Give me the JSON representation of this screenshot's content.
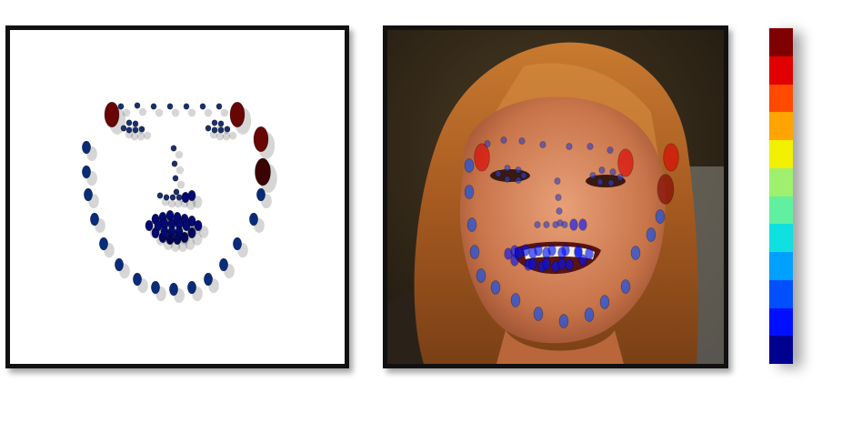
{
  "colormap": [
    "#800000",
    "#e00000",
    "#ff4a00",
    "#ffa400",
    "#f0f000",
    "#a0f070",
    "#60f0a0",
    "#10e0e0",
    "#00a0ff",
    "#0050ff",
    "#0010ff",
    "#000090"
  ],
  "dot_fill_left": "#1a2f6e",
  "dot_fill_right": "#2a3fd0",
  "landmark_levels": [
    9,
    1.5,
    1.5,
    1.5,
    1.5,
    1.5,
    1.5,
    1.5,
    9,
    1,
    1,
    1,
    1,
    1,
    1,
    1,
    1,
    1,
    1,
    1,
    1,
    1,
    1,
    1,
    1,
    1,
    1,
    1,
    1,
    2,
    2,
    2,
    2,
    2,
    2,
    2,
    2,
    2,
    2,
    2,
    2,
    2,
    2,
    2,
    2,
    2,
    2,
    2,
    2,
    2,
    2,
    2,
    2,
    3,
    3,
    3,
    3,
    3,
    3,
    3,
    3,
    3,
    3,
    3,
    3,
    3,
    3,
    3,
    10,
    9,
    8,
    7,
    6,
    5,
    4,
    3,
    2,
    2,
    3,
    4,
    5,
    6,
    7,
    8,
    9,
    10
  ]
}
